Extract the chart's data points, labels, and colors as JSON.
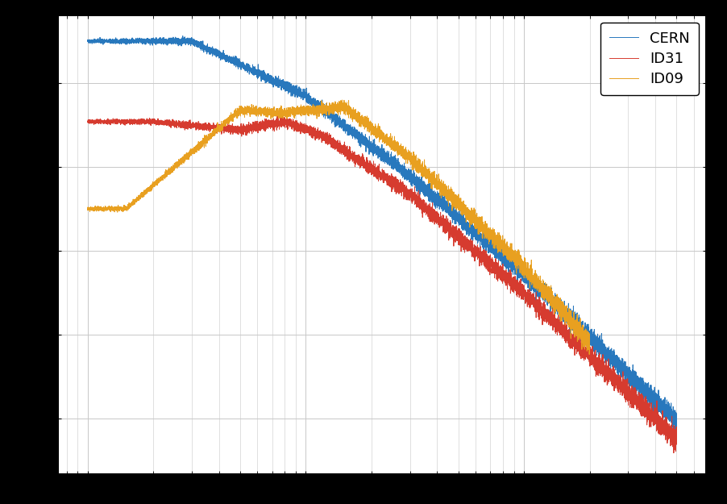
{
  "legend_labels": [
    "CERN",
    "ID31",
    "ID09"
  ],
  "line_colors": [
    "#2878bd",
    "#d63b2f",
    "#e8a020"
  ],
  "background_color": "#ffffff",
  "grid_color": "#c8c8c8",
  "figsize": [
    9.03,
    6.25
  ],
  "dpi": 100,
  "linewidth": 0.7,
  "legend_fontsize": 13,
  "legend_loc": "upper right"
}
